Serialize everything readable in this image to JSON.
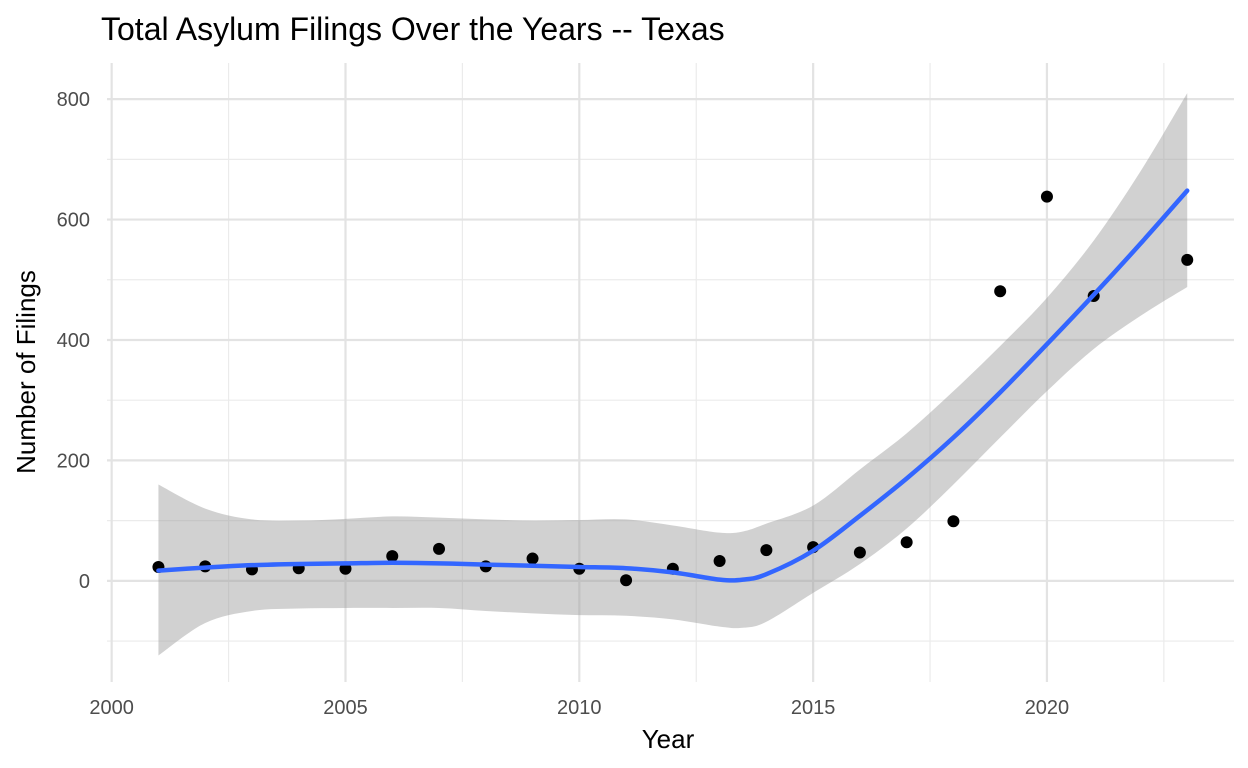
{
  "chart_data": {
    "type": "scatter",
    "title": "Total Asylum Filings Over the Years -- Texas",
    "xlabel": "Year",
    "ylabel": "Number of Filings",
    "xlim": [
      1999.9,
      2024.0
    ],
    "ylim": [
      -168,
      860
    ],
    "x_ticks": [
      2000,
      2005,
      2010,
      2015,
      2020
    ],
    "x_tick_labels": [
      "2000",
      "2005",
      "2010",
      "2015",
      "2020"
    ],
    "x_minor_ticks": [
      2002.5,
      2007.5,
      2012.5,
      2017.5,
      2022.5
    ],
    "y_ticks": [
      0,
      200,
      400,
      600,
      800
    ],
    "y_tick_labels": [
      "0",
      "200",
      "400",
      "600",
      "800"
    ],
    "y_minor_ticks": [
      -100,
      100,
      300,
      500,
      700
    ],
    "grid": true,
    "legend": "none",
    "series": [
      {
        "kind": "points",
        "color": "#000000",
        "points": [
          {
            "x": 2001,
            "y": 23
          },
          {
            "x": 2002,
            "y": 24
          },
          {
            "x": 2003,
            "y": 19
          },
          {
            "x": 2004,
            "y": 21
          },
          {
            "x": 2005,
            "y": 20
          },
          {
            "x": 2006,
            "y": 41
          },
          {
            "x": 2007,
            "y": 53
          },
          {
            "x": 2008,
            "y": 24
          },
          {
            "x": 2009,
            "y": 37
          },
          {
            "x": 2010,
            "y": 20
          },
          {
            "x": 2011,
            "y": 1
          },
          {
            "x": 2012,
            "y": 20
          },
          {
            "x": 2013,
            "y": 33
          },
          {
            "x": 2014,
            "y": 51
          },
          {
            "x": 2015,
            "y": 56
          },
          {
            "x": 2016,
            "y": 47
          },
          {
            "x": 2017,
            "y": 64
          },
          {
            "x": 2018,
            "y": 99
          },
          {
            "x": 2019,
            "y": 481
          },
          {
            "x": 2020,
            "y": 638
          },
          {
            "x": 2021,
            "y": 473
          },
          {
            "x": 2023,
            "y": 533
          }
        ]
      },
      {
        "kind": "smooth",
        "color": "#3366FF",
        "band_color": "#999999",
        "points": [
          {
            "x": 2001,
            "y": 17,
            "lower": -124,
            "upper": 160
          },
          {
            "x": 2002,
            "y": 22,
            "lower": -70,
            "upper": 120
          },
          {
            "x": 2003,
            "y": 26,
            "lower": -50,
            "upper": 102
          },
          {
            "x": 2004,
            "y": 28,
            "lower": -46,
            "upper": 100
          },
          {
            "x": 2005,
            "y": 29,
            "lower": -45,
            "upper": 103
          },
          {
            "x": 2006,
            "y": 30,
            "lower": -45,
            "upper": 107
          },
          {
            "x": 2007,
            "y": 29,
            "lower": -45,
            "upper": 105
          },
          {
            "x": 2008,
            "y": 27,
            "lower": -50,
            "upper": 102
          },
          {
            "x": 2009,
            "y": 25,
            "lower": -54,
            "upper": 100
          },
          {
            "x": 2010,
            "y": 23,
            "lower": -57,
            "upper": 101
          },
          {
            "x": 2011,
            "y": 21,
            "lower": -58,
            "upper": 102
          },
          {
            "x": 2012,
            "y": 14,
            "lower": -64,
            "upper": 92
          },
          {
            "x": 2013,
            "y": 2,
            "lower": -76,
            "upper": 80
          },
          {
            "x": 2013.5,
            "y": 2,
            "lower": -78,
            "upper": 82
          },
          {
            "x": 2014,
            "y": 11,
            "lower": -68,
            "upper": 95
          },
          {
            "x": 2015,
            "y": 50,
            "lower": -20,
            "upper": 125
          },
          {
            "x": 2016,
            "y": 108,
            "lower": 28,
            "upper": 185
          },
          {
            "x": 2017,
            "y": 170,
            "lower": 87,
            "upper": 245
          },
          {
            "x": 2018,
            "y": 238,
            "lower": 160,
            "upper": 315
          },
          {
            "x": 2019,
            "y": 313,
            "lower": 238,
            "upper": 390
          },
          {
            "x": 2020,
            "y": 393,
            "lower": 315,
            "upper": 470
          },
          {
            "x": 2021,
            "y": 475,
            "lower": 385,
            "upper": 565
          },
          {
            "x": 2022,
            "y": 560,
            "lower": 440,
            "upper": 680
          },
          {
            "x": 2023,
            "y": 648,
            "lower": 488,
            "upper": 810
          }
        ]
      }
    ]
  }
}
